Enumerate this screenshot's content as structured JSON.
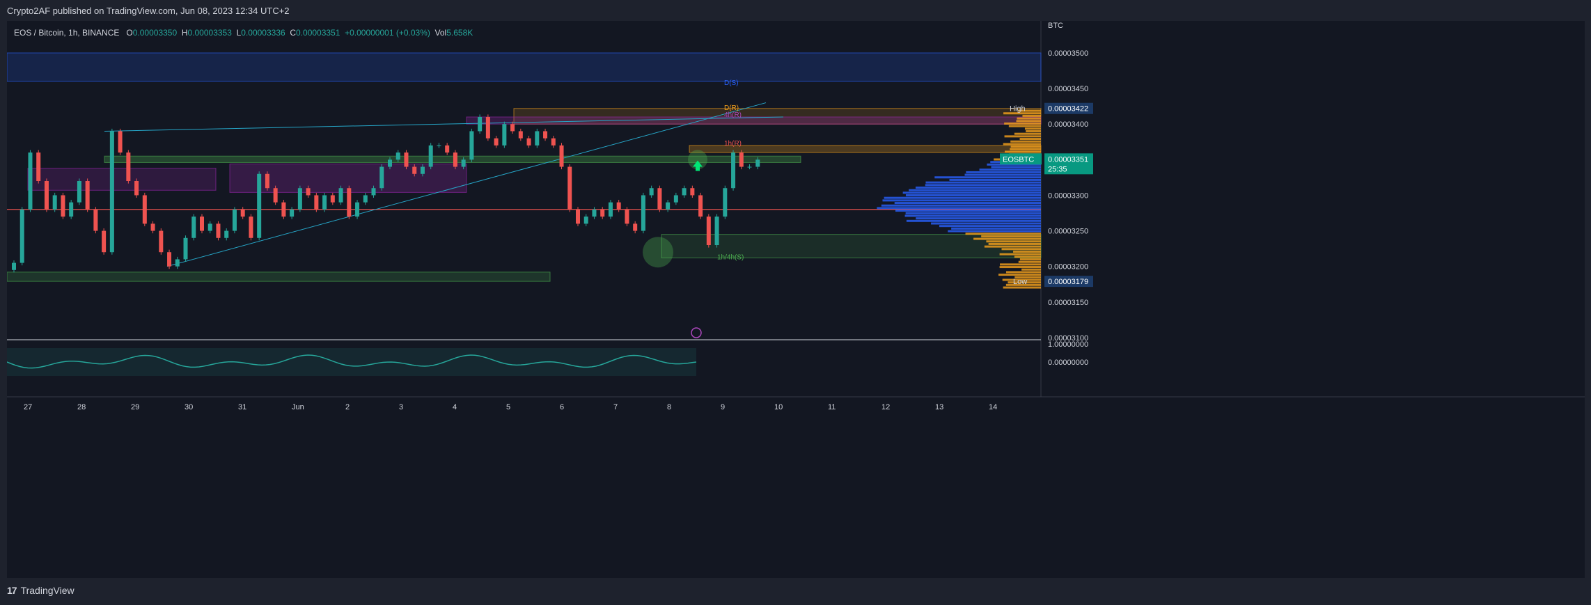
{
  "published": "Crypto2AF published on TradingView.com, Jun 08, 2023 12:34 UTC+2",
  "legend": {
    "symbol": "EOS / Bitcoin, 1h, BINANCE",
    "o_label": "O",
    "o": "0.00003350",
    "h_label": "H",
    "h": "0.00003353",
    "l_label": "L",
    "l": "0.00003336",
    "c_label": "C",
    "c": "0.00003351",
    "change": "+0.00000001 (+0.03%)",
    "vol_label": "Vol",
    "vol": "5.658K"
  },
  "footer": {
    "logo": "17",
    "brand": "TradingView"
  },
  "colors": {
    "up": "#26a69a",
    "down": "#ef5350",
    "bg": "#131722",
    "blue_zone": "#2962ff",
    "orange": "#f7a21b",
    "purple": "#9c27b0",
    "green_zone": "#4caf50"
  },
  "chart_data": {
    "type": "candlestick",
    "axis_currency": "BTC",
    "x_ticks": [
      "27",
      "28",
      "29",
      "30",
      "31",
      "Jun",
      "2",
      "3",
      "4",
      "5",
      "6",
      "7",
      "8",
      "9",
      "10",
      "11",
      "12",
      "13",
      "14"
    ],
    "y_ticks": [
      "0.00003500",
      "0.00003450",
      "0.00003400",
      "0.00003350",
      "0.00003300",
      "0.00003250",
      "0.00003200",
      "0.00003150",
      "0.00003100"
    ],
    "ylim": [
      3.095e-05,
      3.545e-05
    ],
    "labels": {
      "high": "High",
      "high_value": "0.00003422",
      "low": "Low",
      "low_value": "0.00003179",
      "symbol": "EOSBTC",
      "last": "0.00003351",
      "countdown": "25:35"
    },
    "zone_labels": [
      "D(S)",
      "D(R)",
      "4h(R)",
      "1h(R)",
      "1h/4h(S)"
    ],
    "oscillator": {
      "ticks": [
        "1.00000000",
        "0.00000000"
      ]
    },
    "closes": [
      3.205,
      3.28,
      3.36,
      3.32,
      3.28,
      3.3,
      3.27,
      3.29,
      3.32,
      3.28,
      3.25,
      3.22,
      3.39,
      3.36,
      3.32,
      3.3,
      3.26,
      3.25,
      3.22,
      3.2,
      3.21,
      3.24,
      3.27,
      3.25,
      3.26,
      3.24,
      3.25,
      3.28,
      3.27,
      3.24,
      3.33,
      3.31,
      3.29,
      3.27,
      3.28,
      3.31,
      3.3,
      3.28,
      3.3,
      3.29,
      3.31,
      3.27,
      3.29,
      3.3,
      3.31,
      3.34,
      3.35,
      3.36,
      3.34,
      3.33,
      3.34,
      3.37,
      3.37,
      3.36,
      3.34,
      3.35,
      3.39,
      3.41,
      3.38,
      3.37,
      3.4,
      3.39,
      3.38,
      3.37,
      3.39,
      3.38,
      3.37,
      3.34,
      3.28,
      3.26,
      3.27,
      3.28,
      3.27,
      3.29,
      3.28,
      3.26,
      3.25,
      3.3,
      3.31,
      3.28,
      3.29,
      3.3,
      3.31,
      3.3,
      3.27,
      3.23,
      3.27,
      3.31,
      3.36,
      3.34,
      3.34,
      3.35
    ]
  }
}
